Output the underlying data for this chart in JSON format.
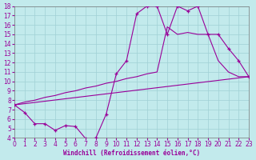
{
  "xlabel": "Windchill (Refroidissement éolien,°C)",
  "xlim": [
    0,
    23
  ],
  "ylim": [
    4,
    18
  ],
  "xticks": [
    0,
    1,
    2,
    3,
    4,
    5,
    6,
    7,
    8,
    9,
    10,
    11,
    12,
    13,
    14,
    15,
    16,
    17,
    18,
    19,
    20,
    21,
    22,
    23
  ],
  "yticks": [
    4,
    5,
    6,
    7,
    8,
    9,
    10,
    11,
    12,
    13,
    14,
    15,
    16,
    17,
    18
  ],
  "bg_color": "#c2eaec",
  "grid_color": "#a0d0d4",
  "line_color": "#990099",
  "line1_x": [
    0,
    1,
    2,
    3,
    4,
    5,
    6,
    7,
    8,
    9,
    10,
    11,
    12,
    13,
    14,
    15,
    16,
    17,
    18,
    19,
    20,
    21,
    22,
    23
  ],
  "line1_y": [
    7.5,
    6.7,
    5.5,
    5.5,
    4.8,
    5.3,
    5.2,
    3.9,
    4.0,
    6.5,
    10.8,
    12.2,
    17.2,
    18.0,
    18.0,
    15.0,
    18.0,
    17.5,
    18.0,
    15.0,
    15.0,
    13.5,
    12.2,
    10.5
  ],
  "line2_x": [
    0,
    23
  ],
  "line2_y": [
    7.5,
    10.5
  ],
  "line3_x": [
    0,
    1,
    2,
    3,
    4,
    5,
    6,
    7,
    8,
    9,
    10,
    11,
    12,
    13,
    14,
    15,
    16,
    17,
    18,
    19,
    20,
    21,
    22,
    23
  ],
  "line3_y": [
    7.5,
    7.8,
    8.0,
    8.3,
    8.5,
    8.8,
    9.0,
    9.3,
    9.5,
    9.8,
    10.0,
    10.3,
    10.5,
    10.8,
    11.0,
    15.8,
    15.0,
    15.2,
    15.0,
    15.0,
    12.2,
    11.0,
    10.5,
    10.5
  ],
  "tick_fontsize": 5.5,
  "xlabel_fontsize": 5.5
}
